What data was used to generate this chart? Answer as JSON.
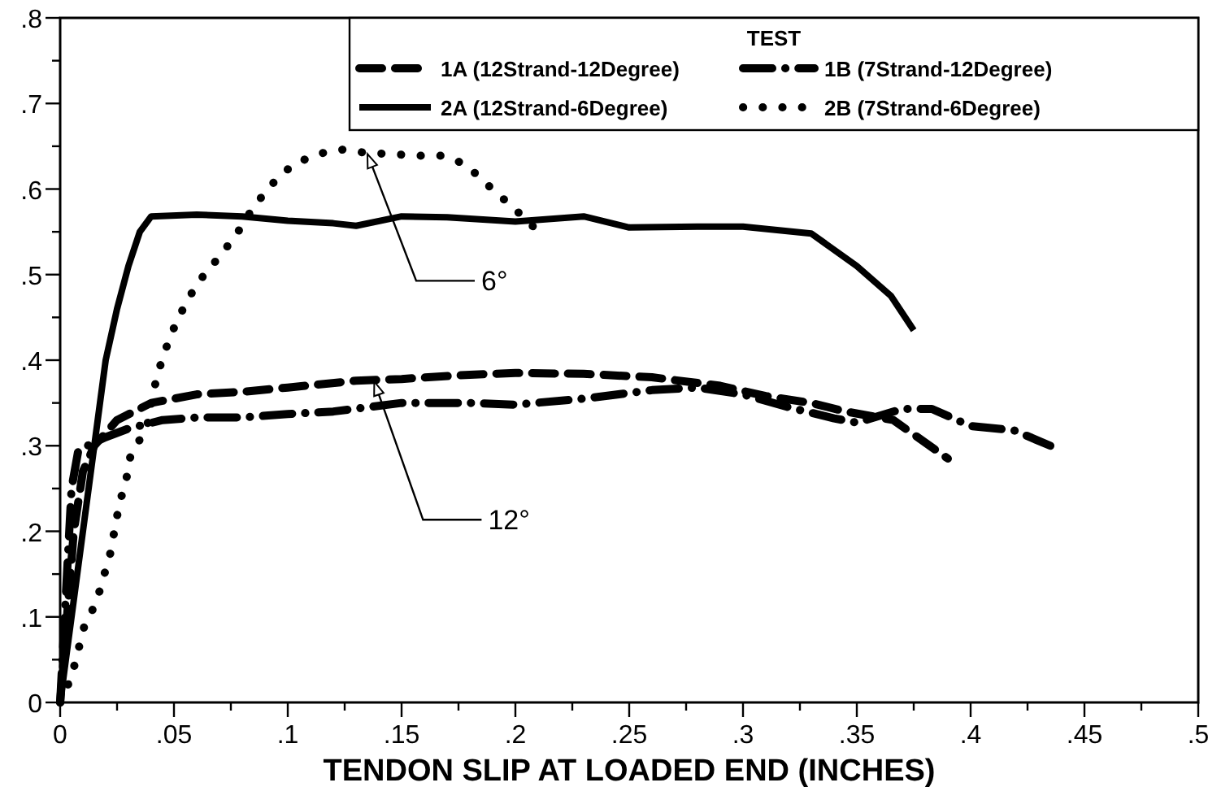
{
  "chart_data": {
    "type": "line",
    "xlabel": "TENDON SLIP AT LOADED END (INCHES)",
    "legend_title": "TEST",
    "legend": "top right",
    "grid": false,
    "xlim": [
      0,
      0.5
    ],
    "ylim": [
      0,
      0.8
    ],
    "xticks": [
      0,
      {
        "value": 0.025,
        "label": null
      },
      {
        "value": 0.05,
        "label": ".05"
      },
      {
        "value": 0.075,
        "label": null
      },
      {
        "value": 0.1,
        "label": ".1"
      },
      {
        "value": 0.125,
        "label": null
      },
      {
        "value": 0.15,
        "label": ".15"
      },
      {
        "value": 0.175,
        "label": null
      },
      {
        "value": 0.2,
        "label": ".2"
      },
      {
        "value": 0.225,
        "label": null
      },
      {
        "value": 0.25,
        "label": ".25"
      },
      {
        "value": 0.275,
        "label": null
      },
      {
        "value": 0.3,
        "label": ".3"
      },
      {
        "value": 0.325,
        "label": null
      },
      {
        "value": 0.35,
        "label": ".35"
      },
      {
        "value": 0.375,
        "label": null
      },
      {
        "value": 0.4,
        "label": ".4"
      },
      {
        "value": 0.425,
        "label": null
      },
      {
        "value": 0.45,
        "label": ".45"
      },
      {
        "value": 0.475,
        "label": null
      },
      {
        "value": 0.5,
        "label": ".5"
      }
    ],
    "yticks": [
      0,
      {
        "value": 0.05,
        "label": null
      },
      {
        "value": 0.1,
        "label": ".1"
      },
      {
        "value": 0.15,
        "label": null
      },
      {
        "value": 0.2,
        "label": ".2"
      },
      {
        "value": 0.25,
        "label": null
      },
      {
        "value": 0.3,
        "label": ".3"
      },
      {
        "value": 0.35,
        "label": null
      },
      {
        "value": 0.4,
        "label": ".4"
      },
      {
        "value": 0.45,
        "label": null
      },
      {
        "value": 0.5,
        "label": ".5"
      },
      {
        "value": 0.55,
        "label": null
      },
      {
        "value": 0.6,
        "label": ".6"
      },
      {
        "value": 0.65,
        "label": null
      },
      {
        "value": 0.7,
        "label": ".7"
      },
      {
        "value": 0.75,
        "label": null
      },
      {
        "value": 0.8,
        "label": ".8"
      }
    ],
    "series": [
      {
        "name": "1A (12Strand-12Degree)",
        "color": "#000000",
        "line_style": "dashed",
        "x": [
          0,
          0.003,
          0.006,
          0.01,
          0.015,
          0.025,
          0.04,
          0.06,
          0.08,
          0.1,
          0.13,
          0.15,
          0.18,
          0.2,
          0.23,
          0.26,
          0.29,
          0.31,
          0.33,
          0.345,
          0.366,
          0.39
        ],
        "values": [
          0,
          0.1,
          0.2,
          0.27,
          0.3,
          0.33,
          0.35,
          0.36,
          0.363,
          0.368,
          0.376,
          0.378,
          0.383,
          0.385,
          0.384,
          0.38,
          0.37,
          0.358,
          0.35,
          0.34,
          0.33,
          0.285
        ]
      },
      {
        "name": "1B (7Strand-12Degree)",
        "color": "#000000",
        "line_style": "dashdot",
        "x": [
          0,
          0.003,
          0.005,
          0.008,
          0.02,
          0.03,
          0.045,
          0.06,
          0.08,
          0.1,
          0.12,
          0.15,
          0.18,
          0.2,
          0.23,
          0.26,
          0.28,
          0.3,
          0.32,
          0.34,
          0.35,
          0.37,
          0.383,
          0.4,
          0.419,
          0.435
        ],
        "values": [
          0,
          0.15,
          0.25,
          0.295,
          0.31,
          0.32,
          0.33,
          0.333,
          0.333,
          0.337,
          0.34,
          0.35,
          0.35,
          0.348,
          0.355,
          0.365,
          0.368,
          0.36,
          0.345,
          0.332,
          0.327,
          0.343,
          0.343,
          0.323,
          0.318,
          0.3
        ]
      },
      {
        "name": "2A (12Strand-6Degree)",
        "color": "#000000",
        "line_style": "solid",
        "x": [
          0,
          0.005,
          0.01,
          0.015,
          0.02,
          0.025,
          0.03,
          0.035,
          0.04,
          0.06,
          0.08,
          0.1,
          0.12,
          0.13,
          0.15,
          0.17,
          0.2,
          0.23,
          0.25,
          0.28,
          0.3,
          0.33,
          0.35,
          0.365,
          0.375
        ],
        "values": [
          0,
          0.1,
          0.2,
          0.3,
          0.4,
          0.46,
          0.51,
          0.55,
          0.568,
          0.57,
          0.568,
          0.563,
          0.56,
          0.557,
          0.568,
          0.567,
          0.562,
          0.568,
          0.555,
          0.556,
          0.556,
          0.548,
          0.51,
          0.475,
          0.435
        ]
      },
      {
        "name": "2B (7Strand-6Degree)",
        "color": "#000000",
        "line_style": "dotted",
        "x": [
          0,
          0.005,
          0.0105,
          0.016,
          0.019,
          0.022,
          0.024,
          0.026,
          0.029,
          0.031,
          0.038,
          0.042,
          0.045,
          0.049,
          0.054,
          0.06,
          0.069,
          0.077,
          0.084,
          0.092,
          0.102,
          0.113,
          0.124,
          0.135,
          0.146,
          0.156,
          0.168,
          0.178,
          0.189,
          0.2,
          0.211
        ],
        "values": [
          0,
          0.03,
          0.088,
          0.118,
          0.146,
          0.174,
          0.203,
          0.232,
          0.26,
          0.29,
          0.32,
          0.375,
          0.403,
          0.432,
          0.46,
          0.489,
          0.518,
          0.545,
          0.575,
          0.603,
          0.628,
          0.641,
          0.646,
          0.642,
          0.641,
          0.639,
          0.639,
          0.629,
          0.602,
          0.576,
          0.548
        ]
      }
    ],
    "annotations": [
      {
        "text": "6°",
        "x": 0.135,
        "y": 0.641
      },
      {
        "text": "12°",
        "x": 0.138,
        "y": 0.375
      }
    ]
  }
}
